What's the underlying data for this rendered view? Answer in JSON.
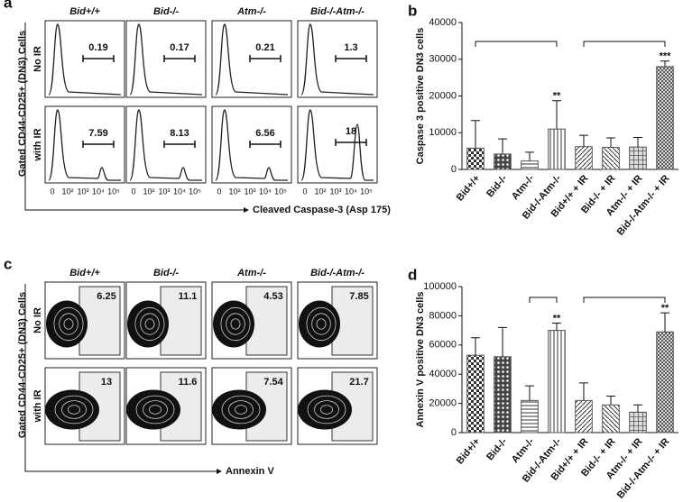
{
  "panel_a": {
    "letter": "a",
    "columns": [
      "Bid+/+",
      "Bid-/-",
      "Atm-/-",
      "Bid-/-Atm-/-"
    ],
    "rows": [
      "No IR",
      "with IR"
    ],
    "y_label": "Gated CD44-CD25+ (DN3) Cells",
    "x_label": "Cleaved Caspase-3 (Asp 175)",
    "xtick_labels": [
      "0",
      "10²",
      "10³",
      "10⁴",
      "10⁵"
    ],
    "values": [
      [
        "0.19",
        "0.17",
        "0.21",
        "1.3"
      ],
      [
        "7.59",
        "8.13",
        "6.56",
        "18"
      ]
    ]
  },
  "panel_c": {
    "letter": "c",
    "columns": [
      "Bid+/+",
      "Bid-/-",
      "Atm-/-",
      "Bid-/-Atm-/-"
    ],
    "rows": [
      "No IR",
      "with IR"
    ],
    "y_label": "Gated CD44-CD25+ (DN3) Cells",
    "x_label": "Annexin V",
    "values": [
      [
        "6.25",
        "11.1",
        "4.53",
        "7.85"
      ],
      [
        "13",
        "11.6",
        "7.54",
        "21.7"
      ]
    ]
  },
  "chart_data": [
    {
      "type": "bar",
      "panel": "b",
      "y_label": "Caspase 3 positive DN3 cells",
      "categories": [
        "Bid+/+",
        "Bid-/-",
        "Atm-/-",
        "Bid-/-Atm-/-",
        "Bid+/+ + IR",
        "Bid-/- + IR",
        "Atm-/- + IR",
        "Bid-/-Atm-/- + IR"
      ],
      "values": [
        5800,
        4200,
        2300,
        11000,
        6200,
        6000,
        6100,
        28000
      ],
      "errors": [
        7500,
        4100,
        2400,
        7700,
        3100,
        2600,
        2600,
        1500
      ],
      "significance": [
        null,
        null,
        null,
        "**",
        null,
        null,
        null,
        "***"
      ],
      "color": "#555555",
      "ylim": [
        0,
        40000
      ],
      "yticks": [
        0,
        10000,
        20000,
        30000,
        40000
      ]
    },
    {
      "type": "bar",
      "panel": "d",
      "y_label": "Annexin V positive DN3 cells",
      "categories": [
        "Bid+/+",
        "Bid-/-",
        "Atm-/-",
        "Bid-/-Atm-/-",
        "Bid+/+ + IR",
        "Bid-/- + IR",
        "Atm-/- + IR",
        "Bid-/-Atm-/- + IR"
      ],
      "values": [
        53000,
        52000,
        22000,
        70000,
        22000,
        19000,
        14000,
        69000
      ],
      "errors": [
        12000,
        20000,
        10000,
        5000,
        12000,
        6000,
        5000,
        13000
      ],
      "significance": [
        null,
        null,
        null,
        "**",
        null,
        null,
        null,
        "**"
      ],
      "color": "#555555",
      "ylim": [
        0,
        100000
      ],
      "yticks": [
        0,
        20000,
        40000,
        60000,
        80000,
        100000
      ]
    }
  ]
}
